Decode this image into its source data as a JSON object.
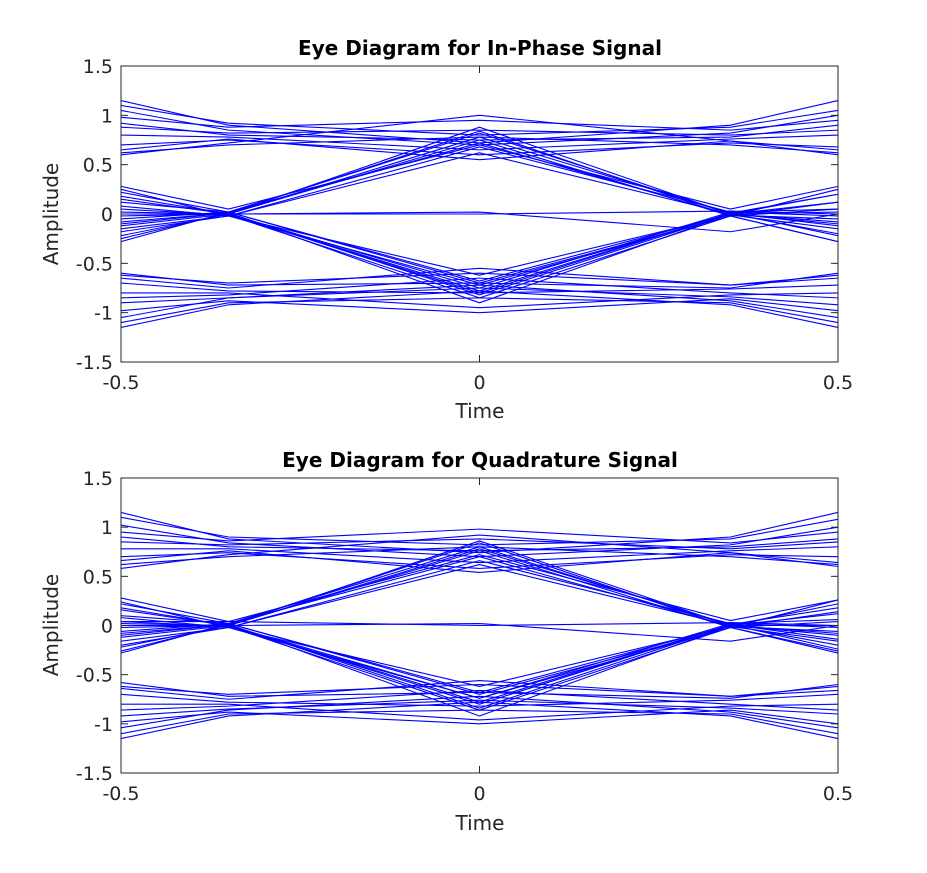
{
  "figure": {
    "background": "#ffffff",
    "trace_color": "#0000ff",
    "axis_color": "#262626"
  },
  "chart_data": [
    {
      "type": "line",
      "title": "Eye Diagram for In-Phase Signal",
      "xlabel": "Time",
      "ylabel": "Amplitude",
      "xlim": [
        -0.5,
        0.5
      ],
      "ylim": [
        -1.5,
        1.5
      ],
      "xticks": [
        -0.5,
        0,
        0.5
      ],
      "xtick_labels": [
        "-0.5",
        "0",
        "0.5"
      ],
      "yticks": [
        -1.5,
        -1,
        -0.5,
        0,
        0.5,
        1,
        1.5
      ],
      "ytick_labels": [
        "-1.5",
        "-1",
        "-0.5",
        "0",
        "0.5",
        "1",
        "1.5"
      ],
      "grid": false,
      "box": true,
      "x": [
        -0.5,
        -0.35,
        0,
        0.35,
        0.5
      ],
      "series": [
        {
          "values": [
            1.15,
            0.9,
            0.72,
            0.9,
            1.15
          ]
        },
        {
          "values": [
            1.1,
            0.92,
            0.8,
            0.88,
            1.05
          ]
        },
        {
          "values": [
            1.05,
            0.85,
            0.7,
            0.82,
            1.0
          ]
        },
        {
          "values": [
            0.98,
            0.88,
            0.95,
            0.85,
            0.95
          ]
        },
        {
          "values": [
            0.92,
            0.8,
            0.75,
            0.78,
            0.9
          ]
        },
        {
          "values": [
            0.88,
            0.82,
            0.85,
            0.8,
            0.85
          ]
        },
        {
          "values": [
            0.8,
            0.78,
            0.65,
            0.76,
            0.8
          ]
        },
        {
          "values": [
            0.7,
            0.75,
            0.6,
            0.72,
            0.68
          ]
        },
        {
          "values": [
            0.62,
            0.7,
            0.78,
            0.7,
            0.62
          ]
        },
        {
          "values": [
            0.6,
            0.72,
            1.0,
            0.74,
            0.6
          ]
        },
        {
          "values": [
            0.65,
            0.76,
            0.55,
            0.74,
            0.65
          ]
        },
        {
          "values": [
            0.28,
            0.05,
            0.7,
            0.05,
            0.28
          ]
        },
        {
          "values": [
            0.22,
            0.02,
            0.82,
            0.0,
            0.2
          ]
        },
        {
          "values": [
            0.15,
            0.0,
            0.75,
            -0.02,
            0.12
          ]
        },
        {
          "values": [
            0.08,
            -0.02,
            0.68,
            0.02,
            0.05
          ]
        },
        {
          "values": [
            0.02,
            0.0,
            0.88,
            0.0,
            0.02
          ]
        },
        {
          "values": [
            -0.05,
            0.02,
            0.72,
            -0.01,
            -0.05
          ]
        },
        {
          "values": [
            -0.12,
            0.0,
            0.78,
            0.01,
            -0.12
          ]
        },
        {
          "values": [
            -0.18,
            -0.02,
            0.62,
            0.0,
            -0.2
          ]
        },
        {
          "values": [
            -0.25,
            0.01,
            0.84,
            -0.02,
            -0.28
          ]
        },
        {
          "values": [
            0.25,
            -0.02,
            -0.72,
            -0.02,
            0.25
          ]
        },
        {
          "values": [
            0.18,
            0.0,
            -0.8,
            0.01,
            0.2
          ]
        },
        {
          "values": [
            0.12,
            0.02,
            -0.68,
            0.0,
            0.12
          ]
        },
        {
          "values": [
            0.05,
            -0.01,
            -0.85,
            -0.02,
            0.05
          ]
        },
        {
          "values": [
            -0.02,
            0.0,
            -0.75,
            0.02,
            -0.02
          ]
        },
        {
          "values": [
            -0.08,
            0.01,
            -0.9,
            0.0,
            -0.08
          ]
        },
        {
          "values": [
            -0.15,
            -0.02,
            -0.62,
            -0.01,
            -0.15
          ]
        },
        {
          "values": [
            -0.22,
            0.0,
            -0.78,
            0.01,
            -0.22
          ]
        },
        {
          "values": [
            -0.28,
            0.02,
            -0.7,
            -0.02,
            -0.28
          ]
        },
        {
          "values": [
            -0.1,
            0.01,
            -0.82,
            0.0,
            -0.1
          ]
        },
        {
          "values": [
            -0.6,
            -0.72,
            -0.7,
            -0.75,
            -0.6
          ]
        },
        {
          "values": [
            -0.65,
            -0.75,
            -0.55,
            -0.72,
            -0.65
          ]
        },
        {
          "values": [
            -0.7,
            -0.78,
            -0.8,
            -0.76,
            -0.72
          ]
        },
        {
          "values": [
            -0.8,
            -0.8,
            -0.95,
            -0.82,
            -0.8
          ]
        },
        {
          "values": [
            -0.85,
            -0.82,
            -0.65,
            -0.8,
            -0.85
          ]
        },
        {
          "values": [
            -0.9,
            -0.85,
            -0.75,
            -0.84,
            -0.92
          ]
        },
        {
          "values": [
            -0.98,
            -0.88,
            -1.0,
            -0.86,
            -0.98
          ]
        },
        {
          "values": [
            -1.05,
            -0.85,
            -0.72,
            -0.88,
            -1.05
          ]
        },
        {
          "values": [
            -1.1,
            -0.9,
            -0.85,
            -0.9,
            -1.1
          ]
        },
        {
          "values": [
            -1.15,
            -0.92,
            -0.78,
            -0.92,
            -1.15
          ]
        },
        {
          "values": [
            -0.62,
            -0.7,
            -0.6,
            -0.72,
            -0.62
          ]
        },
        {
          "values": [
            0.0,
            0.0,
            0.0,
            0.03,
            0.0
          ]
        },
        {
          "values": [
            0.0,
            0.0,
            0.02,
            -0.18,
            0.0
          ]
        }
      ]
    },
    {
      "type": "line",
      "title": "Eye Diagram for Quadrature Signal",
      "xlabel": "Time",
      "ylabel": "Amplitude",
      "xlim": [
        -0.5,
        0.5
      ],
      "ylim": [
        -1.5,
        1.5
      ],
      "xticks": [
        -0.5,
        0,
        0.5
      ],
      "xtick_labels": [
        "-0.5",
        "0",
        "0.5"
      ],
      "yticks": [
        -1.5,
        -1,
        -0.5,
        0,
        0.5,
        1,
        1.5
      ],
      "ytick_labels": [
        "-1.5",
        "-1",
        "-0.5",
        "0",
        "0.5",
        "1",
        "1.5"
      ],
      "grid": false,
      "box": true,
      "x": [
        -0.5,
        -0.35,
        0,
        0.35,
        0.5
      ],
      "series": [
        {
          "values": [
            1.15,
            0.88,
            0.74,
            0.9,
            1.15
          ]
        },
        {
          "values": [
            1.1,
            0.9,
            0.82,
            0.88,
            1.08
          ]
        },
        {
          "values": [
            1.02,
            0.84,
            0.7,
            0.82,
            1.0
          ]
        },
        {
          "values": [
            0.95,
            0.86,
            0.98,
            0.84,
            0.95
          ]
        },
        {
          "values": [
            0.9,
            0.8,
            0.76,
            0.8,
            0.88
          ]
        },
        {
          "values": [
            0.85,
            0.82,
            0.88,
            0.78,
            0.85
          ]
        },
        {
          "values": [
            0.78,
            0.78,
            0.64,
            0.76,
            0.8
          ]
        },
        {
          "values": [
            0.7,
            0.74,
            0.58,
            0.72,
            0.7
          ]
        },
        {
          "values": [
            0.62,
            0.7,
            0.8,
            0.7,
            0.62
          ]
        },
        {
          "values": [
            0.58,
            0.72,
            0.92,
            0.74,
            0.6
          ]
        },
        {
          "values": [
            0.66,
            0.76,
            0.54,
            0.74,
            0.64
          ]
        },
        {
          "values": [
            0.28,
            0.04,
            0.72,
            0.05,
            0.26
          ]
        },
        {
          "values": [
            0.22,
            0.02,
            0.8,
            0.0,
            0.22
          ]
        },
        {
          "values": [
            0.16,
            0.0,
            0.76,
            -0.02,
            0.14
          ]
        },
        {
          "values": [
            0.08,
            -0.02,
            0.66,
            0.02,
            0.06
          ]
        },
        {
          "values": [
            0.02,
            0.0,
            0.86,
            0.0,
            0.0
          ]
        },
        {
          "values": [
            -0.06,
            0.02,
            0.7,
            -0.01,
            -0.06
          ]
        },
        {
          "values": [
            -0.12,
            0.0,
            0.78,
            0.01,
            -0.14
          ]
        },
        {
          "values": [
            -0.2,
            -0.02,
            0.62,
            0.0,
            -0.2
          ]
        },
        {
          "values": [
            -0.26,
            0.01,
            0.84,
            -0.02,
            -0.26
          ]
        },
        {
          "values": [
            0.24,
            -0.02,
            -0.74,
            -0.02,
            0.26
          ]
        },
        {
          "values": [
            0.18,
            0.0,
            -0.8,
            0.01,
            0.18
          ]
        },
        {
          "values": [
            0.1,
            0.02,
            -0.68,
            0.0,
            0.12
          ]
        },
        {
          "values": [
            0.04,
            -0.01,
            -0.86,
            -0.02,
            0.04
          ]
        },
        {
          "values": [
            -0.02,
            0.0,
            -0.74,
            0.02,
            -0.02
          ]
        },
        {
          "values": [
            -0.08,
            0.01,
            -0.92,
            0.0,
            -0.1
          ]
        },
        {
          "values": [
            -0.16,
            -0.02,
            -0.62,
            -0.01,
            -0.16
          ]
        },
        {
          "values": [
            -0.22,
            0.0,
            -0.78,
            0.01,
            -0.24
          ]
        },
        {
          "values": [
            -0.28,
            0.02,
            -0.7,
            -0.02,
            -0.28
          ]
        },
        {
          "values": [
            -0.1,
            0.01,
            -0.84,
            0.0,
            -0.08
          ]
        },
        {
          "values": [
            -0.58,
            -0.72,
            -0.68,
            -0.74,
            -0.6
          ]
        },
        {
          "values": [
            -0.64,
            -0.75,
            -0.56,
            -0.72,
            -0.66
          ]
        },
        {
          "values": [
            -0.7,
            -0.78,
            -0.82,
            -0.76,
            -0.7
          ]
        },
        {
          "values": [
            -0.8,
            -0.8,
            -0.96,
            -0.82,
            -0.8
          ]
        },
        {
          "values": [
            -0.86,
            -0.82,
            -0.66,
            -0.8,
            -0.86
          ]
        },
        {
          "values": [
            -0.92,
            -0.85,
            -0.76,
            -0.84,
            -0.9
          ]
        },
        {
          "values": [
            -0.98,
            -0.88,
            -1.0,
            -0.86,
            -1.0
          ]
        },
        {
          "values": [
            -1.04,
            -0.86,
            -0.72,
            -0.88,
            -1.04
          ]
        },
        {
          "values": [
            -1.1,
            -0.9,
            -0.86,
            -0.9,
            -1.1
          ]
        },
        {
          "values": [
            -1.15,
            -0.92,
            -0.78,
            -0.92,
            -1.15
          ]
        },
        {
          "values": [
            -0.62,
            -0.7,
            -0.6,
            -0.72,
            -0.62
          ]
        },
        {
          "values": [
            0.04,
            0.04,
            0.0,
            0.03,
            0.0
          ]
        },
        {
          "values": [
            0.0,
            0.0,
            0.02,
            -0.16,
            0.0
          ]
        }
      ]
    }
  ]
}
